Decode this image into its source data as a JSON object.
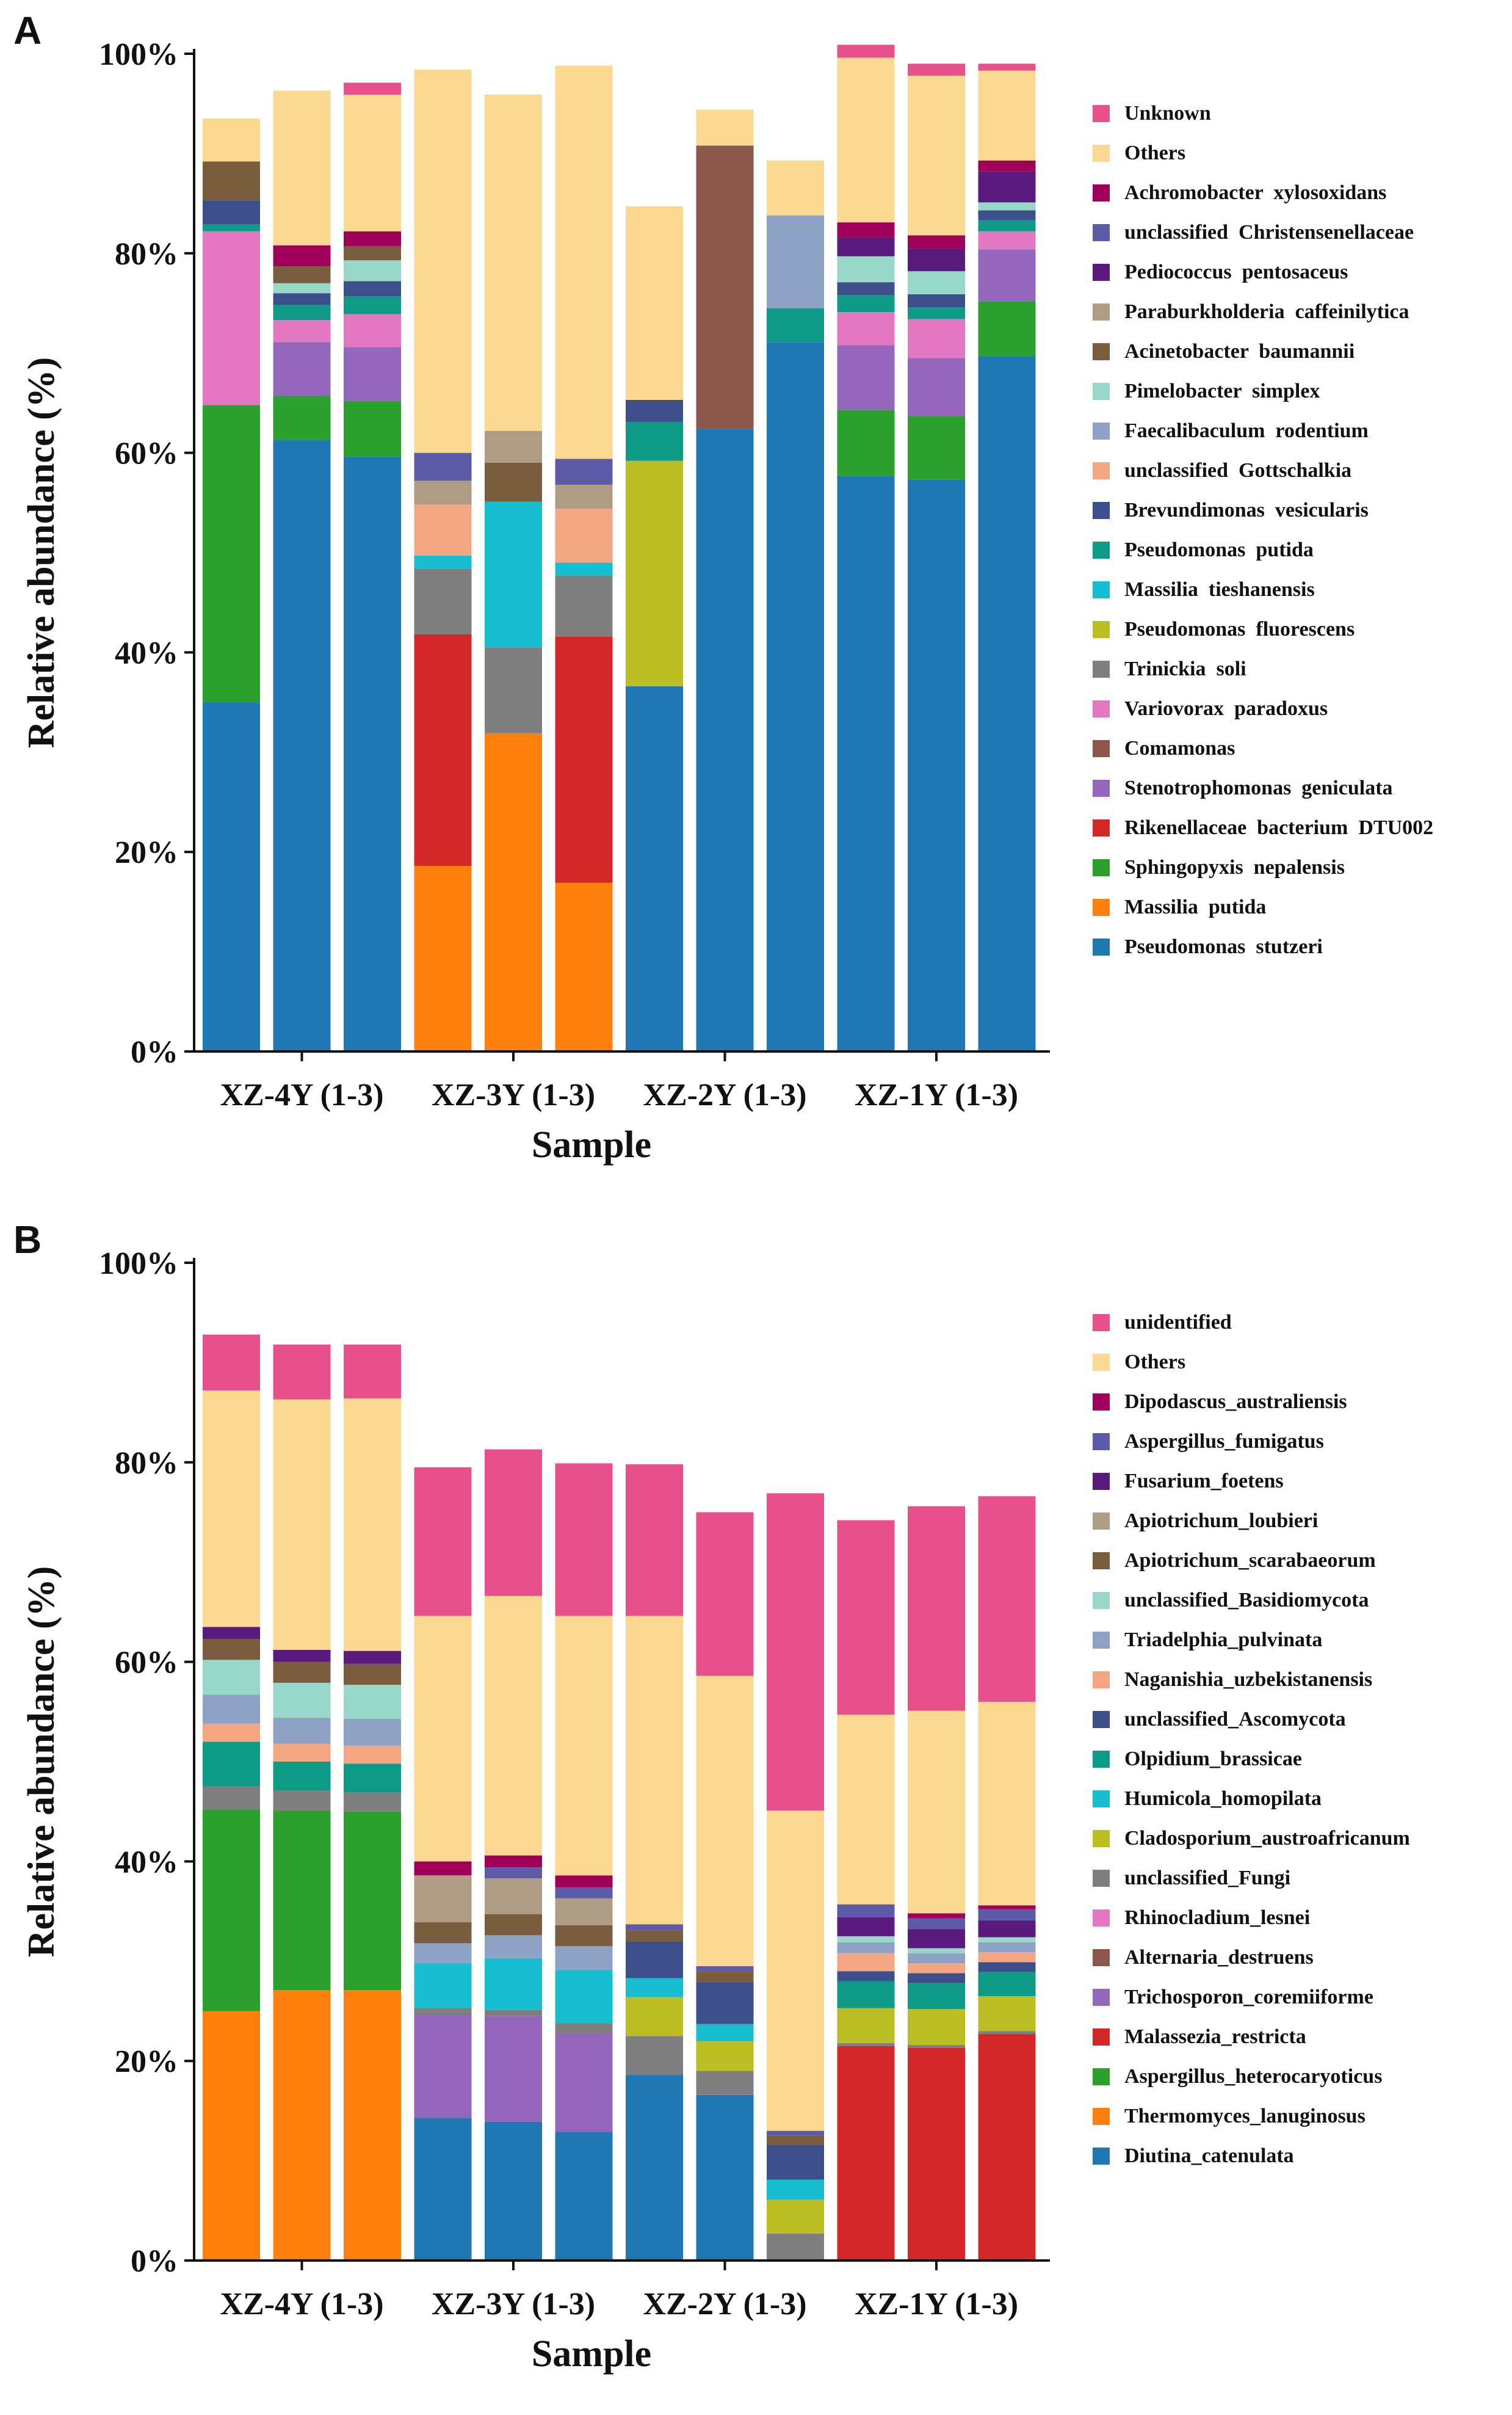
{
  "chart_data": [
    {
      "panel": "A",
      "type": "bar",
      "stacked": true,
      "title": "",
      "xlabel": "Sample",
      "ylabel": "Relative abundance (%)",
      "ylim": [
        0,
        100
      ],
      "yticks": [
        "0%",
        "20%",
        "40%",
        "60%",
        "80%",
        "100%"
      ],
      "groups": [
        "XZ-4Y (1-3)",
        "XZ-3Y (1-3)",
        "XZ-2Y (1-3)",
        "XZ-1Y (1-3)"
      ],
      "legend_position": "right",
      "series": [
        {
          "name": "Pseudomonas  stutzeri",
          "color": "#1f77b4",
          "values": [
            35,
            61.3,
            59.6,
            0,
            0,
            0,
            36.6,
            62.4,
            71.1,
            57.7,
            57.3,
            69.7
          ]
        },
        {
          "name": "Massilia  putida",
          "color": "#ff7f0e",
          "values": [
            0,
            0,
            0,
            18.6,
            31.9,
            16.9,
            0,
            0,
            0,
            0,
            0,
            0
          ]
        },
        {
          "name": "Sphingopyxis  nepalensis",
          "color": "#2ca02c",
          "values": [
            29.8,
            4.4,
            5.6,
            0,
            0,
            0,
            0,
            0,
            0,
            6.6,
            6.4,
            5.5
          ]
        },
        {
          "name": "Rikenellaceae  bacterium  DTU002",
          "color": "#d62728",
          "values": [
            0,
            0,
            0,
            23.2,
            0,
            24.7,
            0,
            0,
            0,
            0,
            0,
            0
          ]
        },
        {
          "name": "Stenotrophomonas  geniculata",
          "color": "#9467bd",
          "values": [
            0,
            5.4,
            5.4,
            0,
            0,
            0,
            0,
            0,
            0,
            6.5,
            5.8,
            5.2
          ]
        },
        {
          "name": "Comamonas",
          "color": "#8c564b",
          "values": [
            0,
            0,
            0,
            0,
            0,
            0,
            0,
            28.4,
            0,
            0,
            0,
            0
          ]
        },
        {
          "name": "Variovorax  paradoxus",
          "color": "#e377c2",
          "values": [
            17.4,
            2.2,
            3.3,
            0,
            0,
            0,
            0,
            0,
            0,
            3.3,
            3.9,
            1.8
          ]
        },
        {
          "name": "Trinickia  soli",
          "color": "#7f7f7f",
          "values": [
            0,
            0,
            0,
            6.6,
            8.6,
            6.1,
            0,
            0,
            0,
            0,
            0,
            0
          ]
        },
        {
          "name": "Pseudomonas  fluorescens",
          "color": "#bcbd22",
          "values": [
            0,
            0,
            0,
            0,
            0,
            0,
            22.6,
            0,
            0,
            0,
            0,
            0
          ]
        },
        {
          "name": "Massilia  tieshanensis",
          "color": "#17becf",
          "values": [
            0,
            0,
            0,
            1.3,
            14.6,
            1.3,
            0,
            0,
            0,
            0,
            0,
            0
          ]
        },
        {
          "name": "Pseudomonas  putida",
          "color": "#0d9a87",
          "values": [
            0.7,
            1.5,
            1.8,
            0,
            0,
            0,
            3.9,
            0,
            3.4,
            1.7,
            1.2,
            1.1
          ]
        },
        {
          "name": "Brevundimonas  vesicularis",
          "color": "#3c4f8a",
          "values": [
            2.4,
            1.2,
            1.5,
            0,
            0,
            0,
            2.2,
            0,
            0,
            1.3,
            1.3,
            1
          ]
        },
        {
          "name": "unclassified  Gottschalkia",
          "color": "#f4a582",
          "values": [
            0,
            0,
            0,
            5.1,
            0,
            5.4,
            0,
            0,
            0,
            0,
            0,
            0
          ]
        },
        {
          "name": "Faecalibaculum  rodentium",
          "color": "#8ea2c5",
          "values": [
            0,
            0,
            0,
            0,
            0,
            0,
            0,
            0,
            9.3,
            0,
            0,
            0
          ]
        },
        {
          "name": "Pimelobacter  simplex",
          "color": "#98d8c8",
          "values": [
            0,
            1,
            2.1,
            0,
            0,
            0,
            0,
            0,
            0,
            2.6,
            2.3,
            0.8
          ]
        },
        {
          "name": "Acinetobacter  baumannii",
          "color": "#7a5c3e",
          "values": [
            3.9,
            1.7,
            1.4,
            0,
            3.9,
            0,
            0,
            0,
            0,
            0,
            0,
            0
          ]
        },
        {
          "name": "Paraburkholderia  caffeinilytica",
          "color": "#b09c85",
          "values": [
            0,
            0,
            0,
            2.4,
            3.2,
            2.4,
            0,
            0,
            0,
            0,
            0,
            0
          ]
        },
        {
          "name": "Pediococcus  pentosaceus",
          "color": "#5a1a7e",
          "values": [
            0,
            0,
            0,
            0,
            0,
            0,
            0,
            0,
            0,
            1.9,
            2.3,
            3.1
          ]
        },
        {
          "name": "unclassified  Christensenellaceae",
          "color": "#5d5aa8",
          "values": [
            0,
            0,
            0,
            2.8,
            0,
            2.6,
            0,
            0,
            0,
            0,
            0,
            0
          ]
        },
        {
          "name": "Achromobacter  xylosoxidans",
          "color": "#a0005a",
          "values": [
            0,
            2.1,
            1.5,
            0,
            0,
            0,
            0,
            0,
            0,
            1.5,
            1.3,
            1.1
          ]
        },
        {
          "name": "Others",
          "color": "#fcd990",
          "values": [
            4.3,
            15.5,
            13.7,
            38.4,
            33.7,
            39.4,
            19.4,
            3.6,
            5.5,
            16.5,
            16,
            9
          ]
        },
        {
          "name": "Unknown",
          "color": "#e8508c",
          "values": [
            0,
            0,
            1.2,
            0,
            0,
            0,
            0,
            0,
            0,
            1.3,
            1.2,
            0.7
          ]
        }
      ],
      "legend_order": [
        "Unknown",
        "Others",
        "Achromobacter  xylosoxidans",
        "unclassified  Christensenellaceae",
        "Pediococcus  pentosaceus",
        "Paraburkholderia  caffeinilytica",
        "Acinetobacter  baumannii",
        "Pimelobacter  simplex",
        "Faecalibaculum  rodentium",
        "unclassified  Gottschalkia",
        "Brevundimonas  vesicularis",
        "Pseudomonas  putida",
        "Massilia  tieshanensis",
        "Pseudomonas  fluorescens",
        "Trinickia  soli",
        "Variovorax  paradoxus",
        "Comamonas",
        "Stenotrophomonas  geniculata",
        "Rikenellaceae  bacterium  DTU002",
        "Sphingopyxis  nepalensis",
        "Massilia  putida",
        "Pseudomonas  stutzeri"
      ]
    },
    {
      "panel": "B",
      "type": "bar",
      "stacked": true,
      "title": "",
      "xlabel": "Sample",
      "ylabel": "Relative abundance (%)",
      "ylim": [
        0,
        100
      ],
      "yticks": [
        "0%",
        "20%",
        "40%",
        "60%",
        "80%",
        "100%"
      ],
      "groups": [
        "XZ-4Y (1-3)",
        "XZ-3Y (1-3)",
        "XZ-2Y (1-3)",
        "XZ-1Y (1-3)"
      ],
      "legend_position": "right",
      "series": [
        {
          "name": "Diutina_catenulata",
          "color": "#1f77b4",
          "values": [
            0,
            0,
            0,
            14.3,
            13.9,
            12.9,
            18.6,
            16.6,
            0,
            0,
            0,
            0
          ]
        },
        {
          "name": "Thermomyces_lanuginosus",
          "color": "#ff7f0e",
          "values": [
            25,
            27.1,
            27.1,
            0,
            0,
            0,
            0,
            0,
            0,
            0,
            0,
            0
          ]
        },
        {
          "name": "Aspergillus_heterocaryoticus",
          "color": "#2ca02c",
          "values": [
            20.2,
            18,
            17.9,
            0,
            0,
            0,
            0,
            0,
            0,
            0,
            0,
            0
          ]
        },
        {
          "name": "Malassezia_restricta",
          "color": "#d62728",
          "values": [
            0,
            0,
            0,
            0,
            0,
            0,
            0,
            0,
            0,
            21.5,
            21.3,
            22.7
          ]
        },
        {
          "name": "Trichosporon_coremiiforme",
          "color": "#9467bd",
          "values": [
            0,
            0,
            0,
            10.3,
            10.6,
            9.9,
            0,
            0,
            0,
            0,
            0,
            0
          ]
        },
        {
          "name": "Alternaria_destruens",
          "color": "#8c564b",
          "values": [
            0,
            0,
            0,
            0,
            0,
            0,
            0,
            0,
            0,
            0,
            0,
            0
          ]
        },
        {
          "name": "Rhinocladium_lesnei",
          "color": "#e377c2",
          "values": [
            0,
            0,
            0,
            0,
            0,
            0,
            0,
            0,
            0,
            0,
            0,
            0
          ]
        },
        {
          "name": "unclassified_Fungi",
          "color": "#7f7f7f",
          "values": [
            2.3,
            2,
            1.9,
            0.7,
            0.6,
            1,
            3.9,
            2.4,
            2.7,
            0.3,
            0.3,
            0.3
          ]
        },
        {
          "name": "Cladosporium_austroafricanum",
          "color": "#bcbd22",
          "values": [
            0,
            0,
            0,
            0,
            0,
            0,
            3.9,
            3,
            3.4,
            3.5,
            3.6,
            3.5
          ]
        },
        {
          "name": "Humicola_homopilata",
          "color": "#17becf",
          "values": [
            0,
            0,
            0,
            4.5,
            5.2,
            5.3,
            1.9,
            1.7,
            2,
            0,
            0,
            0
          ]
        },
        {
          "name": "Olpidium_brassicae",
          "color": "#0d9a87",
          "values": [
            4.5,
            2.9,
            2.9,
            0,
            0,
            0,
            0,
            0,
            0,
            2.7,
            2.6,
            2.4
          ]
        },
        {
          "name": "unclassified_Ascomycota",
          "color": "#3c4f8a",
          "values": [
            0,
            0,
            0,
            0,
            0,
            0,
            3.7,
            4.2,
            3.5,
            1,
            1,
            1
          ]
        },
        {
          "name": "Naganishia_uzbekistanensis",
          "color": "#f4a582",
          "values": [
            1.8,
            1.8,
            1.8,
            0,
            0,
            0,
            0,
            0,
            0,
            1.8,
            1,
            1
          ]
        },
        {
          "name": "Triadelphia_pulvinata",
          "color": "#8ea2c5",
          "values": [
            2.9,
            2.6,
            2.7,
            2,
            2.3,
            2.4,
            0,
            0,
            0,
            1.1,
            1,
            1
          ]
        },
        {
          "name": "unclassified_Basidiomycota",
          "color": "#98d8c8",
          "values": [
            3.5,
            3.5,
            3.4,
            0,
            0,
            0,
            0,
            0,
            0,
            0.6,
            0.5,
            0.5
          ]
        },
        {
          "name": "Apiotrichum_scarabaeorum",
          "color": "#7a5c3e",
          "values": [
            2.1,
            2.1,
            2.1,
            2.1,
            2.1,
            2.1,
            1.1,
            1.1,
            0.9,
            0,
            0,
            0
          ]
        },
        {
          "name": "Apiotrichum_loubieri",
          "color": "#b09c85",
          "values": [
            0,
            0,
            0,
            4.7,
            3.6,
            2.7,
            0,
            0,
            0,
            0,
            0,
            0
          ]
        },
        {
          "name": "Fusarium_foetens",
          "color": "#5a1a7e",
          "values": [
            1.2,
            1.2,
            1.3,
            0,
            0,
            0,
            0,
            0,
            0,
            1.9,
            1.9,
            1.7
          ]
        },
        {
          "name": "Aspergillus_fumigatus",
          "color": "#5d5aa8",
          "values": [
            0,
            0,
            0,
            0,
            1.1,
            1.1,
            0.6,
            0.5,
            0.5,
            1.3,
            1.1,
            1.1
          ]
        },
        {
          "name": "Dipodascus_australiensis",
          "color": "#a0005a",
          "values": [
            0,
            0,
            0,
            1.4,
            1.2,
            1.2,
            0,
            0,
            0,
            0,
            0.5,
            0.4
          ]
        },
        {
          "name": "Others",
          "color": "#fcd990",
          "values": [
            23.7,
            25.1,
            25.3,
            24.6,
            26,
            26,
            30.9,
            29.1,
            32.1,
            19,
            20.3,
            20.4
          ]
        },
        {
          "name": "unidentified",
          "color": "#e8508c",
          "values": [
            5.6,
            5.5,
            5.4,
            14.9,
            14.7,
            15.3,
            15.2,
            16.4,
            31.8,
            19.5,
            20.5,
            20.6
          ]
        }
      ],
      "legend_order": [
        "unidentified",
        "Others",
        "Dipodascus_australiensis",
        "Aspergillus_fumigatus",
        "Fusarium_foetens",
        "Apiotrichum_loubieri",
        "Apiotrichum_scarabaeorum",
        "unclassified_Basidiomycota",
        "Triadelphia_pulvinata",
        "Naganishia_uzbekistanensis",
        "unclassified_Ascomycota",
        "Olpidium_brassicae",
        "Humicola_homopilata",
        "Cladosporium_austroafricanum",
        "unclassified_Fungi",
        "Rhinocladium_lesnei",
        "Alternaria_destruens",
        "Trichosporon_coremiiforme",
        "Malassezia_restricta",
        "Aspergillus_heterocaryoticus",
        "Thermomyces_lanuginosus",
        "Diutina_catenulata"
      ]
    }
  ],
  "panels": [
    {
      "letter": "A"
    },
    {
      "letter": "B"
    }
  ]
}
